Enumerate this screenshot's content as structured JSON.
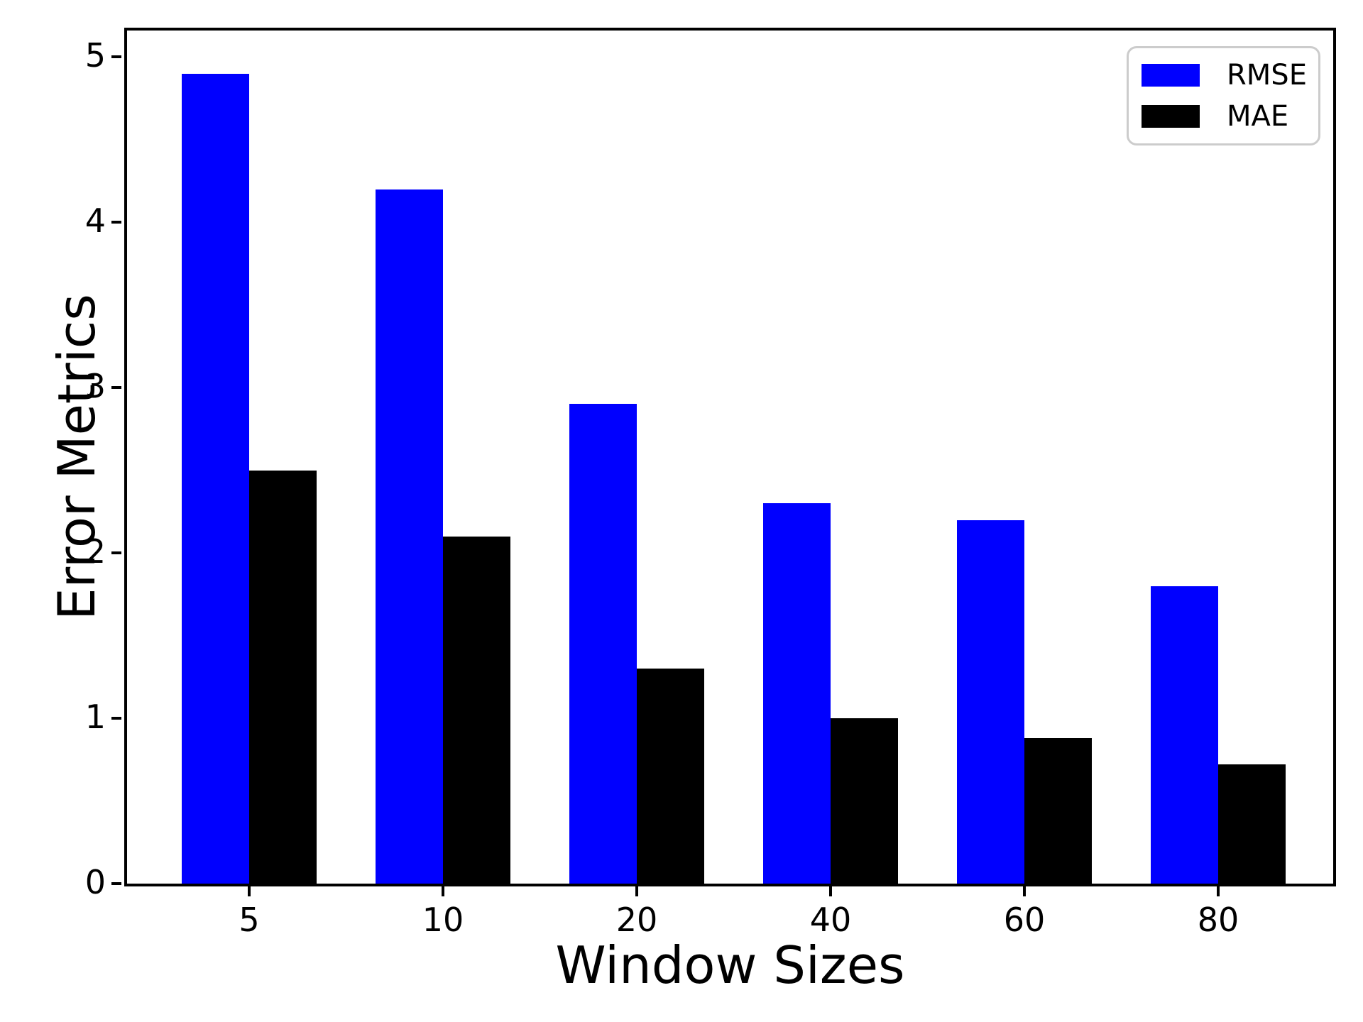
{
  "chart_data": {
    "type": "bar",
    "title": "",
    "xlabel": "Window Sizes",
    "ylabel": "Error Metrics",
    "categories": [
      "5",
      "10",
      "20",
      "40",
      "60",
      "80"
    ],
    "series": [
      {
        "name": "RMSE",
        "color": "#0000ff",
        "values": [
          4.9,
          4.2,
          2.9,
          2.3,
          2.2,
          1.8
        ]
      },
      {
        "name": "MAE",
        "color": "#000000",
        "values": [
          2.5,
          2.1,
          1.3,
          1.0,
          0.88,
          0.72
        ]
      }
    ],
    "yticks": [
      0,
      1,
      2,
      3,
      4,
      5
    ],
    "ylim": [
      0,
      5.16
    ],
    "xlim_note": "categorical, 6 groups",
    "legend_position": "upper right",
    "grid": false,
    "background_color": "#ffffff",
    "spine_color": "#000000",
    "legend_edge_color": "#cccccc"
  }
}
